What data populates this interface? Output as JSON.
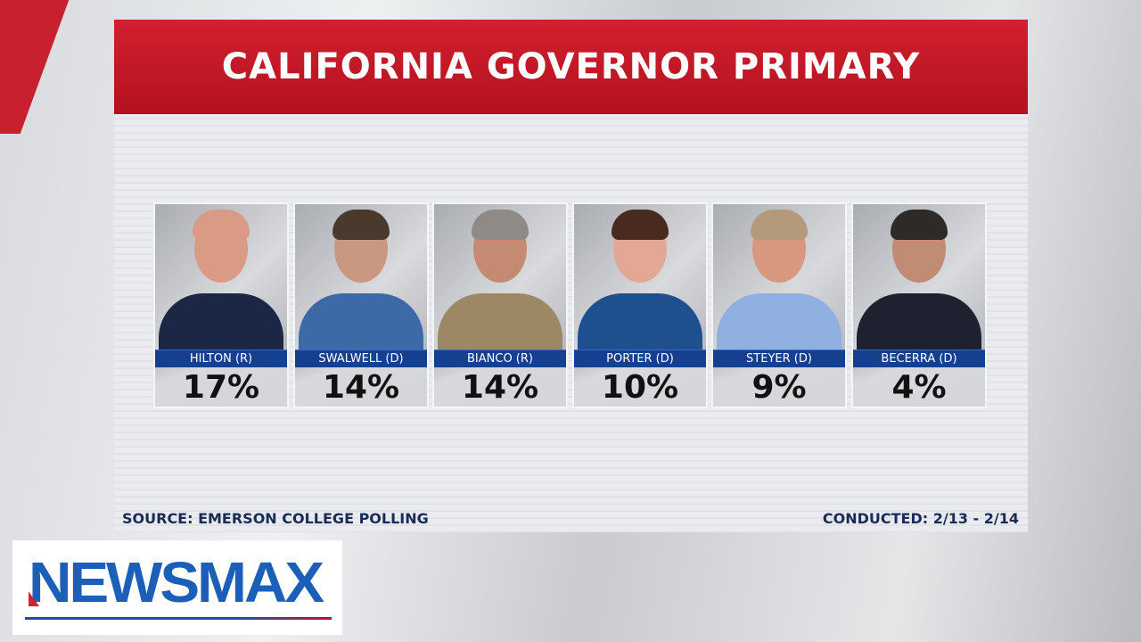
{
  "title": "CALIFORNIA GOVERNOR PRIMARY",
  "candidates": [
    {
      "name": "HILTON (R)",
      "percent": "17%",
      "value": 17,
      "skin": "#d99a86",
      "hair": "#d99a86",
      "suit": "#1c2745"
    },
    {
      "name": "SWALWELL (D)",
      "percent": "14%",
      "value": 14,
      "skin": "#c99880",
      "hair": "#4a3a2e",
      "suit": "#3d6aa6"
    },
    {
      "name": "BIANCO (R)",
      "percent": "14%",
      "value": 14,
      "skin": "#c58b72",
      "hair": "#8f8a86",
      "suit": "#9d8865"
    },
    {
      "name": "PORTER (D)",
      "percent": "10%",
      "value": 10,
      "skin": "#e2a895",
      "hair": "#4a2a1e",
      "suit": "#1f4f8f"
    },
    {
      "name": "STEYER (D)",
      "percent": "9%",
      "value": 9,
      "skin": "#d9977f",
      "hair": "#b49a7a",
      "suit": "#8fb0e0"
    },
    {
      "name": "BECERRA (D)",
      "percent": "4%",
      "value": 4,
      "skin": "#c08d74",
      "hair": "#2e2a28",
      "suit": "#1e2230"
    }
  ],
  "footer": {
    "source": "SOURCE: EMERSON COLLEGE POLLING",
    "conducted": "CONDUCTED: 2/13 - 2/14"
  },
  "logo": {
    "text": "NEWSMAX"
  },
  "colors": {
    "header": "#c8202e",
    "name_bar": "#173f8f",
    "footer_text": "#1a2c55",
    "logo_blue": "#1c5fb8"
  }
}
